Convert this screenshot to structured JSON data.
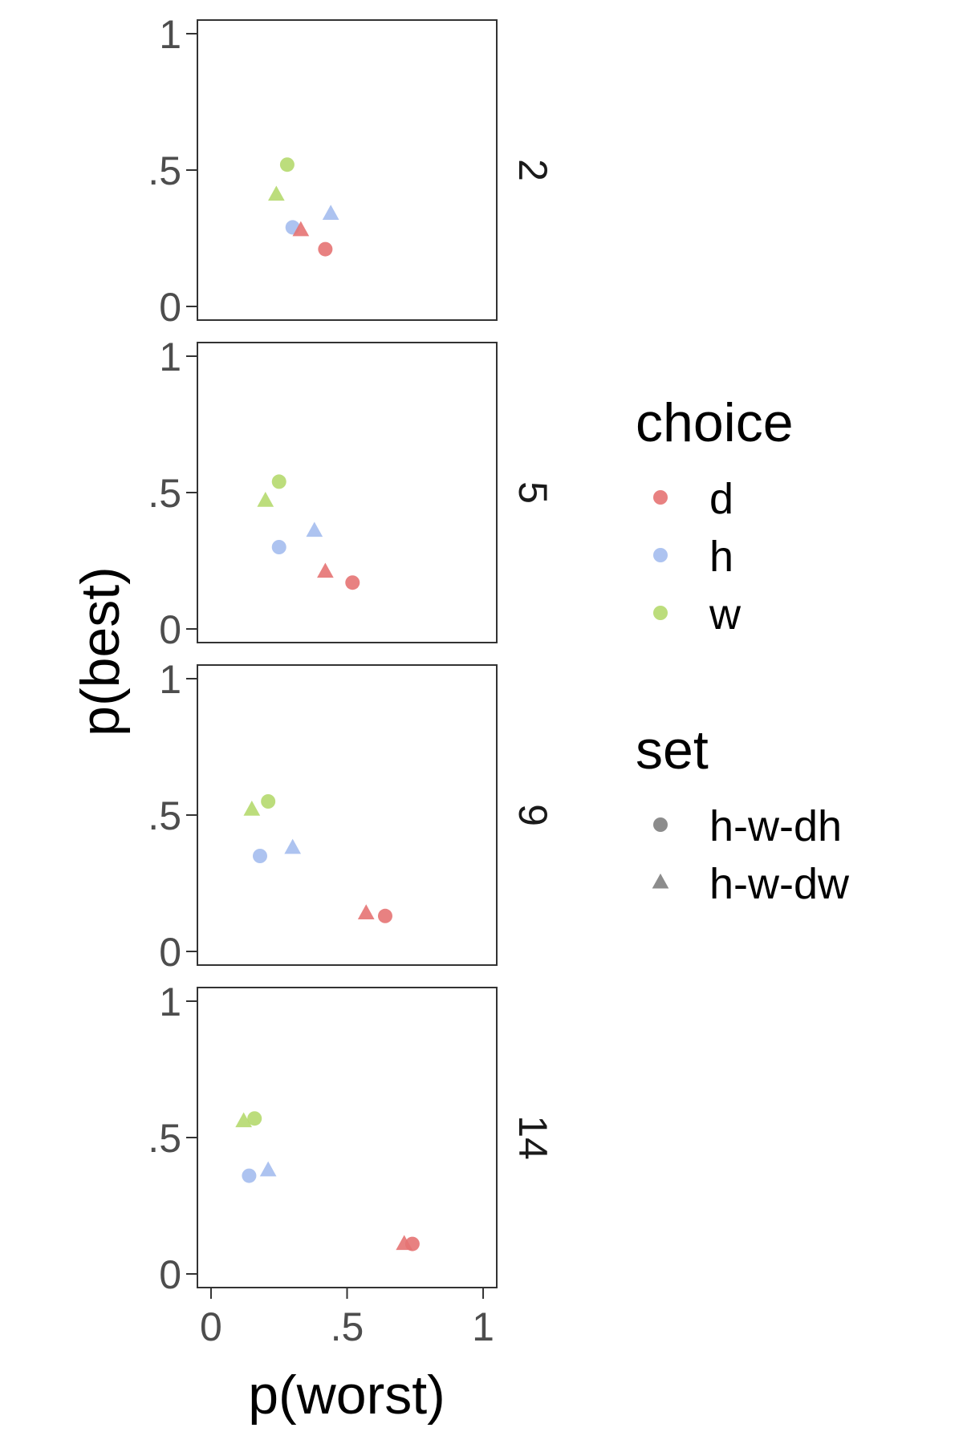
{
  "chart_data": {
    "type": "scatter",
    "xlabel": "p(worst)",
    "ylabel": "p(best)",
    "xlim": [
      -0.05,
      1.05
    ],
    "ylim": [
      -0.05,
      1.05
    ],
    "x_ticks": [
      {
        "value": 0,
        "label": "0"
      },
      {
        "value": 0.5,
        "label": ".5"
      },
      {
        "value": 1,
        "label": "1"
      }
    ],
    "y_ticks": [
      {
        "value": 0,
        "label": "0"
      },
      {
        "value": 0.5,
        "label": ".5"
      },
      {
        "value": 1,
        "label": "1"
      }
    ],
    "grid": false,
    "facet_by": "number",
    "colors": {
      "d": "#e57373",
      "h": "#a4bdee",
      "w": "#b5d96e"
    },
    "legend": {
      "placement": "right",
      "choice": {
        "title": "choice",
        "items": [
          "d",
          "h",
          "w"
        ]
      },
      "set": {
        "title": "set",
        "items": [
          {
            "label": "h-w-dh",
            "shape": "circle"
          },
          {
            "label": "h-w-dw",
            "shape": "triangle"
          }
        ]
      }
    },
    "panels": [
      {
        "label": "2",
        "points": [
          {
            "choice": "w",
            "set": "h-w-dh",
            "x": 0.28,
            "y": 0.52
          },
          {
            "choice": "w",
            "set": "h-w-dw",
            "x": 0.24,
            "y": 0.41
          },
          {
            "choice": "h",
            "set": "h-w-dh",
            "x": 0.3,
            "y": 0.29
          },
          {
            "choice": "h",
            "set": "h-w-dw",
            "x": 0.44,
            "y": 0.34
          },
          {
            "choice": "d",
            "set": "h-w-dh",
            "x": 0.42,
            "y": 0.21
          },
          {
            "choice": "d",
            "set": "h-w-dw",
            "x": 0.33,
            "y": 0.28
          }
        ]
      },
      {
        "label": "5",
        "points": [
          {
            "choice": "w",
            "set": "h-w-dh",
            "x": 0.25,
            "y": 0.54
          },
          {
            "choice": "w",
            "set": "h-w-dw",
            "x": 0.2,
            "y": 0.47
          },
          {
            "choice": "h",
            "set": "h-w-dh",
            "x": 0.25,
            "y": 0.3
          },
          {
            "choice": "h",
            "set": "h-w-dw",
            "x": 0.38,
            "y": 0.36
          },
          {
            "choice": "d",
            "set": "h-w-dh",
            "x": 0.52,
            "y": 0.17
          },
          {
            "choice": "d",
            "set": "h-w-dw",
            "x": 0.42,
            "y": 0.21
          }
        ]
      },
      {
        "label": "9",
        "points": [
          {
            "choice": "w",
            "set": "h-w-dh",
            "x": 0.21,
            "y": 0.55
          },
          {
            "choice": "w",
            "set": "h-w-dw",
            "x": 0.15,
            "y": 0.52
          },
          {
            "choice": "h",
            "set": "h-w-dh",
            "x": 0.18,
            "y": 0.35
          },
          {
            "choice": "h",
            "set": "h-w-dw",
            "x": 0.3,
            "y": 0.38
          },
          {
            "choice": "d",
            "set": "h-w-dh",
            "x": 0.64,
            "y": 0.13
          },
          {
            "choice": "d",
            "set": "h-w-dw",
            "x": 0.57,
            "y": 0.14
          }
        ]
      },
      {
        "label": "14",
        "points": [
          {
            "choice": "w",
            "set": "h-w-dh",
            "x": 0.16,
            "y": 0.57
          },
          {
            "choice": "w",
            "set": "h-w-dw",
            "x": 0.12,
            "y": 0.56
          },
          {
            "choice": "h",
            "set": "h-w-dh",
            "x": 0.14,
            "y": 0.36
          },
          {
            "choice": "h",
            "set": "h-w-dw",
            "x": 0.21,
            "y": 0.38
          },
          {
            "choice": "d",
            "set": "h-w-dh",
            "x": 0.74,
            "y": 0.11
          },
          {
            "choice": "d",
            "set": "h-w-dw",
            "x": 0.71,
            "y": 0.11
          }
        ]
      }
    ]
  }
}
